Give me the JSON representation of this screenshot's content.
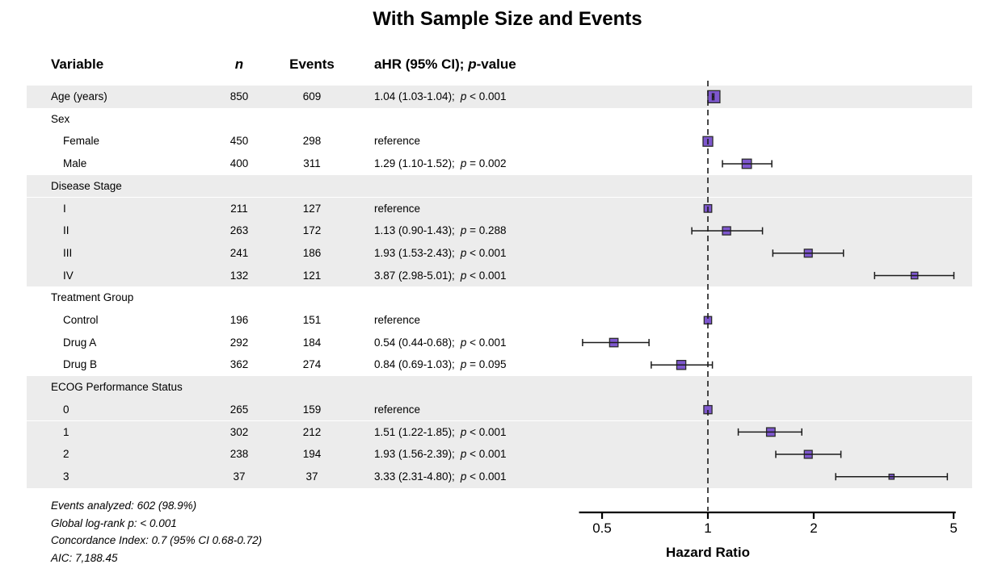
{
  "title": "With Sample Size and Events",
  "header": {
    "variable": "Variable",
    "n": "n",
    "events": "Events",
    "ahr_prefix": "aHR (95% CI); ",
    "ahr_p": "p",
    "ahr_suffix": "-value"
  },
  "labels": {
    "p": "p"
  },
  "colors": {
    "marker_fill": "#7E57CE",
    "marker_stroke": "#2b2b2b",
    "ci_line": "#1b1b1b",
    "band": "#ECECEC",
    "ref_line": "#1b1b1b",
    "axis": "#000000"
  },
  "footer_lines": [
    "Events analyzed: 602 (98.9%)",
    "Global log-rank p: < 0.001",
    "Concordance Index: 0.7 (95% CI 0.68-0.72)",
    "AIC: 7,188.45"
  ],
  "chart_data": {
    "type": "forest",
    "xscale": "log",
    "axis": {
      "label": "Hazard Ratio",
      "ticks": [
        "0.5",
        "1",
        "2",
        "5"
      ],
      "tick_values": [
        0.5,
        1,
        2,
        5
      ],
      "range": [
        0.43,
        5.07
      ],
      "ref_value": 1
    },
    "rows": [
      {
        "label": "Age (years)",
        "indent": 0,
        "band": true,
        "n": "850",
        "events": "609",
        "ci_text": "1.04 (1.03-1.04);",
        "p_text": "< 0.001",
        "hr": 1.04,
        "low": 1.03,
        "high": 1.04
      },
      {
        "label": "Sex",
        "indent": 0,
        "band": false,
        "group_header": true
      },
      {
        "label": "Female",
        "indent": 1,
        "band": false,
        "n": "450",
        "events": "298",
        "ci_text": "reference",
        "hr": 1.0
      },
      {
        "label": "Male",
        "indent": 1,
        "band": false,
        "n": "400",
        "events": "311",
        "ci_text": "1.29 (1.10-1.52);",
        "p_text": "= 0.002",
        "hr": 1.29,
        "low": 1.1,
        "high": 1.52
      },
      {
        "label": "Disease Stage",
        "indent": 0,
        "band": true,
        "group_header": true
      },
      {
        "label": "I",
        "indent": 1,
        "band": true,
        "n": "211",
        "events": "127",
        "ci_text": "reference",
        "hr": 1.0
      },
      {
        "label": "II",
        "indent": 1,
        "band": true,
        "n": "263",
        "events": "172",
        "ci_text": "1.13 (0.90-1.43);",
        "p_text": "= 0.288",
        "hr": 1.13,
        "low": 0.9,
        "high": 1.43
      },
      {
        "label": "III",
        "indent": 1,
        "band": true,
        "n": "241",
        "events": "186",
        "ci_text": "1.93 (1.53-2.43);",
        "p_text": "< 0.001",
        "hr": 1.93,
        "low": 1.53,
        "high": 2.43
      },
      {
        "label": "IV",
        "indent": 1,
        "band": true,
        "n": "132",
        "events": "121",
        "ci_text": "3.87 (2.98-5.01);",
        "p_text": "< 0.001",
        "hr": 3.87,
        "low": 2.98,
        "high": 5.01
      },
      {
        "label": "Treatment Group",
        "indent": 0,
        "band": false,
        "group_header": true
      },
      {
        "label": "Control",
        "indent": 1,
        "band": false,
        "n": "196",
        "events": "151",
        "ci_text": "reference",
        "hr": 1.0
      },
      {
        "label": "Drug A",
        "indent": 1,
        "band": false,
        "n": "292",
        "events": "184",
        "ci_text": "0.54 (0.44-0.68);",
        "p_text": "< 0.001",
        "hr": 0.54,
        "low": 0.44,
        "high": 0.68
      },
      {
        "label": "Drug B",
        "indent": 1,
        "band": false,
        "n": "362",
        "events": "274",
        "ci_text": "0.84 (0.69-1.03);",
        "p_text": "= 0.095",
        "hr": 0.84,
        "low": 0.69,
        "high": 1.03
      },
      {
        "label": "ECOG Performance Status",
        "indent": 0,
        "band": true,
        "group_header": true
      },
      {
        "label": "0",
        "indent": 1,
        "band": true,
        "n": "265",
        "events": "159",
        "ci_text": "reference",
        "hr": 1.0
      },
      {
        "label": "1",
        "indent": 1,
        "band": true,
        "n": "302",
        "events": "212",
        "ci_text": "1.51 (1.22-1.85);",
        "p_text": "< 0.001",
        "hr": 1.51,
        "low": 1.22,
        "high": 1.85
      },
      {
        "label": "2",
        "indent": 1,
        "band": true,
        "n": "238",
        "events": "194",
        "ci_text": "1.93 (1.56-2.39);",
        "p_text": "< 0.001",
        "hr": 1.93,
        "low": 1.56,
        "high": 2.39
      },
      {
        "label": "3",
        "indent": 1,
        "band": true,
        "n": "37",
        "events": "37",
        "ci_text": "3.33 (2.31-4.80);",
        "p_text": "< 0.001",
        "hr": 3.33,
        "low": 2.31,
        "high": 4.8
      }
    ]
  }
}
